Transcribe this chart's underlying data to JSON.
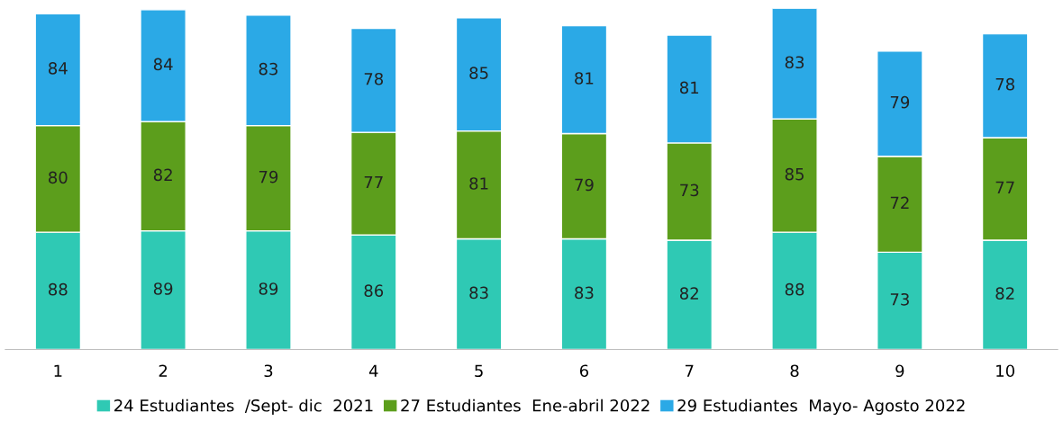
{
  "chart_data": {
    "type": "bar",
    "stacked": true,
    "data_labels": true,
    "legend": "bottom",
    "grid": false,
    "categories": [
      "1",
      "2",
      "3",
      "4",
      "5",
      "6",
      "7",
      "8",
      "9",
      "10"
    ],
    "series": [
      {
        "name": "24 Estudiantes  /Sept- dic  2021",
        "color": "#2fc9b4",
        "values": [
          88,
          89,
          89,
          86,
          83,
          83,
          82,
          88,
          73,
          82
        ]
      },
      {
        "name": "27 Estudiantes  Ene-abril 2022",
        "color": "#5c9e1c",
        "values": [
          80,
          82,
          79,
          77,
          81,
          79,
          73,
          85,
          72,
          77
        ]
      },
      {
        "name": "29 Estudiantes  Mayo- Agosto 2022",
        "color": "#2ba9e6",
        "values": [
          84,
          84,
          83,
          78,
          85,
          81,
          81,
          83,
          79,
          78
        ]
      }
    ]
  }
}
